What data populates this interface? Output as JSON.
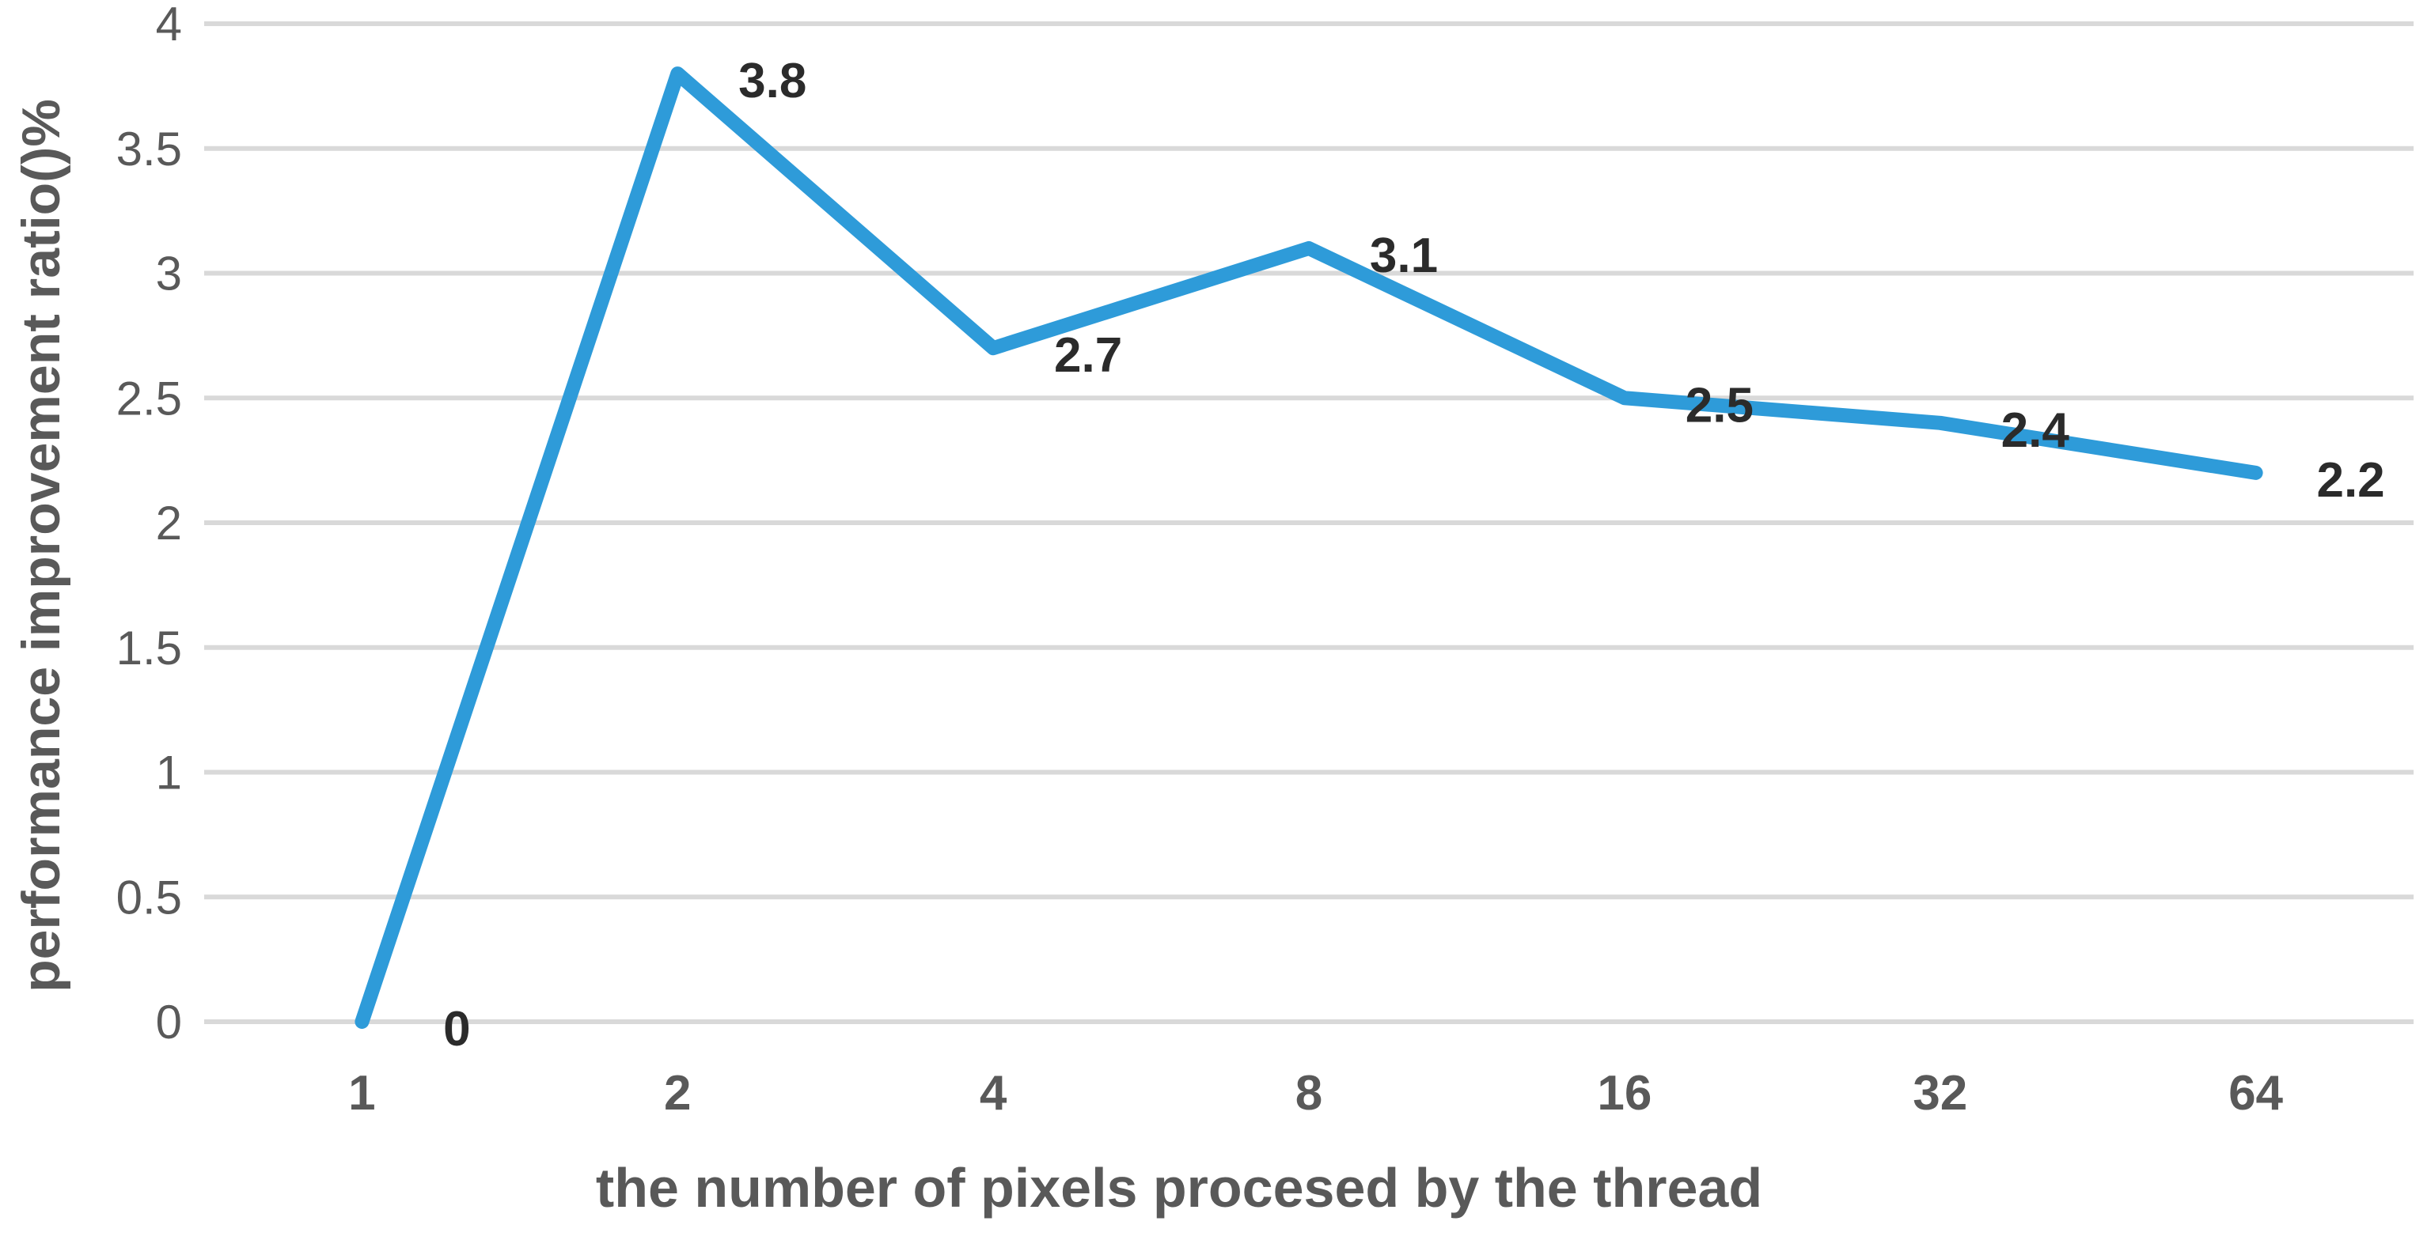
{
  "chart_data": {
    "type": "line",
    "categories": [
      "1",
      "2",
      "4",
      "8",
      "16",
      "32",
      "64"
    ],
    "values": [
      0,
      3.8,
      2.7,
      3.1,
      2.5,
      2.4,
      2.2
    ],
    "data_labels": [
      "0",
      "3.8",
      "2.7",
      "3.1",
      "2.5",
      "2.4",
      "2.2"
    ],
    "title": "",
    "xlabel": "the number of pixels procesed by the thread",
    "ylabel": "performance improvement ratio()%",
    "ylim": [
      0,
      4
    ],
    "ytick_step": 0.5,
    "yticks": [
      "0",
      "0.5",
      "1",
      "1.5",
      "2",
      "2.5",
      "3",
      "3.5",
      "4"
    ],
    "grid": true,
    "legend_position": "none",
    "series_name": "performance improvement ratio"
  },
  "colors": {
    "line": "#2E9BD9",
    "gridline": "#D9D9D9",
    "tick_text": "#595959",
    "data_label_text": "#2b2b2b",
    "axis_title_text": "#595959",
    "background": "#ffffff"
  }
}
